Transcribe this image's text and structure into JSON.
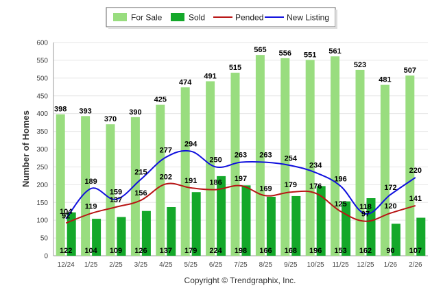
{
  "chart_data": {
    "type": "bar",
    "title": "",
    "xlabel": "",
    "ylabel": "Number of Homes",
    "ylim": [
      0,
      600
    ],
    "yticks": [
      0,
      50,
      100,
      150,
      200,
      250,
      300,
      350,
      400,
      450,
      500,
      550,
      600
    ],
    "grid": true,
    "legend_position": "top-center",
    "categories": [
      "12/24",
      "1/25",
      "2/25",
      "3/25",
      "4/25",
      "5/25",
      "6/25",
      "7/25",
      "8/25",
      "9/25",
      "10/25",
      "11/25",
      "12/25",
      "1/26",
      "2/26"
    ],
    "series": [
      {
        "name": "For Sale",
        "kind": "bar",
        "color": "#99dd7f",
        "values": [
          398,
          393,
          370,
          390,
          425,
          474,
          491,
          515,
          565,
          556,
          551,
          561,
          523,
          481,
          507
        ]
      },
      {
        "name": "Sold",
        "kind": "bar",
        "color": "#14a82a",
        "values": [
          122,
          104,
          109,
          126,
          137,
          179,
          224,
          198,
          166,
          168,
          196,
          153,
          162,
          90,
          107
        ]
      },
      {
        "name": "Pended",
        "kind": "line",
        "color": "#b81414",
        "values": [
          92,
          119,
          137,
          156,
          202,
          191,
          186,
          197,
          169,
          179,
          176,
          125,
          97,
          120,
          141
        ]
      },
      {
        "name": "New Listing",
        "kind": "line",
        "color": "#1010dd",
        "values": [
          104,
          189,
          159,
          215,
          277,
          294,
          250,
          263,
          263,
          254,
          234,
          196,
          118,
          172,
          220
        ]
      }
    ],
    "footer": "Copyright © Trendgraphix, Inc."
  }
}
